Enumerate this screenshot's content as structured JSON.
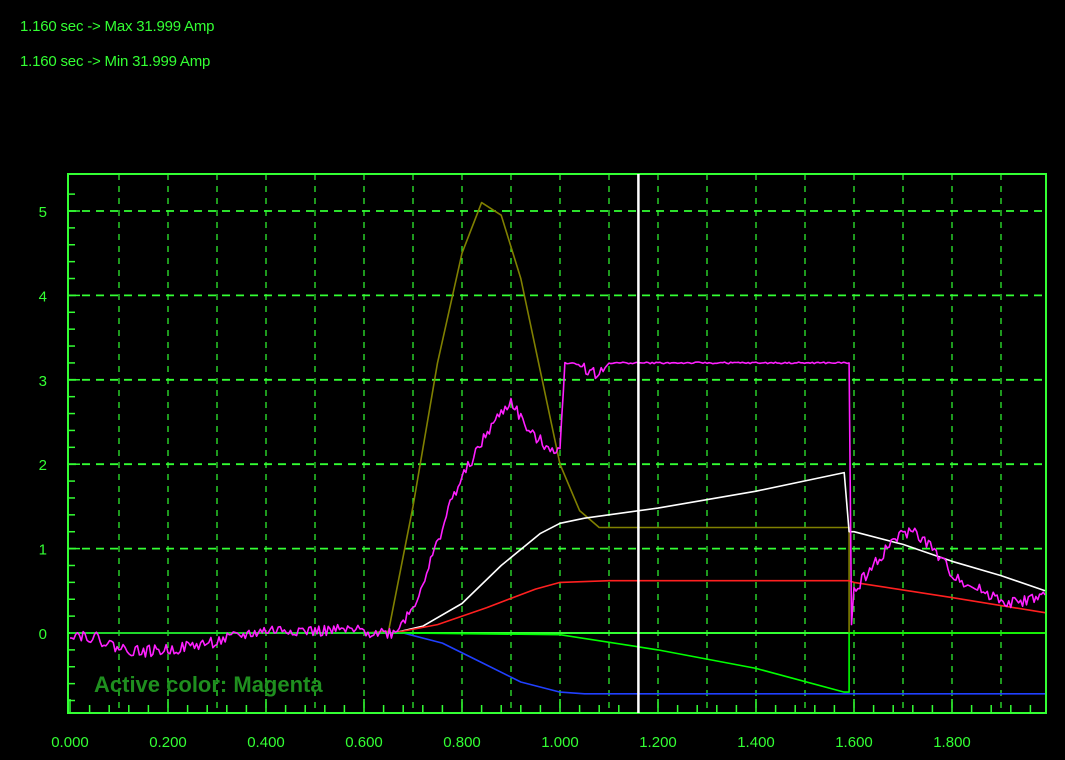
{
  "readouts": {
    "line1": "1.160 sec -> Max 31.999 Amp",
    "line2": "1.160 sec -> Min 31.999 Amp"
  },
  "active_label": "Active color: Magenta",
  "colors": {
    "background": "#000000",
    "axis": "#33ff33",
    "grid": "#33ff33",
    "cursor": "#ffffff",
    "active_label": "#1f8f1f"
  },
  "chart_data": {
    "type": "line",
    "xlim": [
      0.0,
      1.99
    ],
    "ylim": [
      -0.9,
      5.4
    ],
    "grid": true,
    "legend": "none",
    "x_tick_labels": [
      "0.000",
      "0.200",
      "0.400",
      "0.600",
      "0.800",
      "1.000",
      "1.200",
      "1.400",
      "1.600",
      "1.800"
    ],
    "x_tick_values": [
      0.0,
      0.2,
      0.4,
      0.6,
      0.8,
      1.0,
      1.2,
      1.4,
      1.6,
      1.8
    ],
    "y_tick_labels": [
      "0",
      "1",
      "2",
      "3",
      "4",
      "5"
    ],
    "y_tick_values": [
      0,
      1,
      2,
      3,
      4,
      5
    ],
    "cursor_x": 1.16,
    "series": [
      {
        "color": "#808000",
        "x": [
          0.0,
          0.6,
          0.65,
          0.7,
          0.75,
          0.8,
          0.84,
          0.88,
          0.92,
          0.96,
          1.0,
          1.04,
          1.08,
          1.1,
          1.59,
          1.59,
          1.99
        ],
        "y": [
          0.0,
          0.0,
          0.02,
          1.5,
          3.2,
          4.5,
          5.1,
          4.95,
          4.2,
          3.1,
          2.0,
          1.45,
          1.25,
          1.25,
          1.25,
          0.0,
          0.0
        ]
      },
      {
        "color": "#ffffff",
        "x": [
          0.0,
          0.66,
          0.72,
          0.8,
          0.88,
          0.96,
          1.0,
          1.05,
          1.1,
          1.2,
          1.4,
          1.58,
          1.59,
          1.6,
          1.7,
          1.8,
          1.9,
          1.99
        ],
        "y": [
          0.0,
          0.0,
          0.08,
          0.35,
          0.8,
          1.18,
          1.3,
          1.36,
          1.4,
          1.48,
          1.68,
          1.9,
          1.2,
          1.2,
          1.05,
          0.85,
          0.68,
          0.5
        ]
      },
      {
        "color": "#ff2020",
        "x": [
          0.0,
          0.66,
          0.75,
          0.85,
          0.95,
          1.0,
          1.1,
          1.59,
          1.6,
          1.8,
          1.99
        ],
        "y": [
          0.0,
          0.0,
          0.1,
          0.3,
          0.52,
          0.6,
          0.62,
          0.62,
          0.6,
          0.42,
          0.24
        ]
      },
      {
        "color": "#2040ff",
        "x": [
          0.0,
          0.68,
          0.76,
          0.84,
          0.92,
          1.0,
          1.05,
          1.99
        ],
        "y": [
          0.0,
          0.0,
          -0.12,
          -0.35,
          -0.58,
          -0.7,
          -0.72,
          -0.72
        ]
      },
      {
        "color": "#00ff00",
        "x": [
          0.0,
          0.68,
          1.0,
          1.2,
          1.4,
          1.58,
          1.59,
          1.59,
          1.99
        ],
        "y": [
          0.0,
          0.0,
          -0.02,
          -0.2,
          -0.42,
          -0.7,
          -0.7,
          0.0,
          0.0
        ]
      },
      {
        "color": "#ff20ff",
        "x": [
          0.0,
          0.05,
          0.1,
          0.15,
          0.2,
          0.25,
          0.3,
          0.35,
          0.4,
          0.45,
          0.5,
          0.55,
          0.6,
          0.66,
          0.7,
          0.74,
          0.78,
          0.82,
          0.86,
          0.9,
          0.94,
          0.98,
          1.0,
          1.01,
          1.03,
          1.08,
          1.1,
          1.2,
          1.4,
          1.59,
          1.595,
          1.6,
          1.64,
          1.68,
          1.72,
          1.76,
          1.8,
          1.84,
          1.88,
          1.92,
          1.96,
          1.99
        ],
        "y": [
          0.0,
          -0.05,
          -0.18,
          -0.22,
          -0.2,
          -0.15,
          -0.1,
          -0.03,
          0.03,
          0.04,
          0.02,
          0.03,
          0.02,
          0.0,
          0.3,
          0.9,
          1.6,
          2.05,
          2.45,
          2.75,
          2.35,
          2.2,
          2.15,
          3.2,
          3.2,
          3.05,
          3.2,
          3.2,
          3.2,
          3.2,
          0.1,
          0.5,
          0.8,
          1.1,
          1.22,
          1.0,
          0.7,
          0.55,
          0.45,
          0.35,
          0.4,
          0.45
        ]
      }
    ]
  }
}
